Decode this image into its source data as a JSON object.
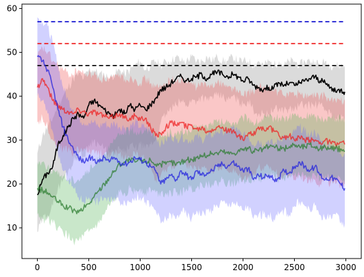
{
  "chart_data": {
    "type": "line",
    "title": "",
    "xlabel": "",
    "ylabel": "",
    "xlim": [
      -150,
      3150
    ],
    "ylim": [
      3,
      61
    ],
    "grid": false,
    "legend": "none",
    "xticks": [
      0,
      500,
      1000,
      1500,
      2000,
      2500,
      3000
    ],
    "yticks": [
      10,
      20,
      30,
      40,
      50,
      60
    ],
    "hlines": [
      {
        "y": 57,
        "color": "#0000cc",
        "style": "dashed"
      },
      {
        "y": 52,
        "color": "#ee1111",
        "style": "dashed"
      },
      {
        "y": 47,
        "color": "#000000",
        "style": "dashed"
      }
    ],
    "series": [
      {
        "color": "#000000",
        "fill_color": "#888888",
        "x": [
          0,
          50,
          100,
          150,
          200,
          250,
          300,
          350,
          400,
          450,
          500,
          550,
          600,
          650,
          700,
          750,
          800,
          850,
          900,
          950,
          1000,
          1050,
          1100,
          1150,
          1200,
          1250,
          1300,
          1350,
          1400,
          1450,
          1500,
          1550,
          1600,
          1650,
          1700,
          1750,
          1800,
          1850,
          1900,
          1950,
          2000,
          2050,
          2100,
          2150,
          2200,
          2250,
          2300,
          2350,
          2400,
          2450,
          2500,
          2550,
          2600,
          2650,
          2700,
          2750,
          2800,
          2850,
          2900,
          2950,
          2990
        ],
        "y": [
          17.5,
          21,
          22.5,
          24,
          29,
          31,
          33,
          35,
          36,
          35,
          38,
          39,
          38,
          37,
          36,
          35.5,
          37,
          36,
          38,
          37,
          38,
          37,
          38,
          39.5,
          41.5,
          42,
          43,
          44,
          44.5,
          43.5,
          44,
          44.5,
          45,
          44,
          45,
          45.5,
          45,
          44.5,
          45,
          44.5,
          43.5,
          44,
          42.5,
          42,
          41.5,
          42,
          42,
          43,
          42.5,
          43,
          42.5,
          43,
          43.5,
          44,
          44.5,
          43.5,
          43,
          42,
          41,
          41.5,
          41
        ],
        "upper": [
          27,
          31,
          33,
          35,
          38,
          40,
          42,
          44,
          45,
          44,
          46,
          46,
          45,
          45,
          44,
          45,
          46,
          45,
          46,
          47,
          48,
          46,
          47,
          48,
          47,
          48,
          48,
          49,
          48,
          48,
          49,
          48,
          48,
          49,
          48,
          49,
          48,
          48,
          49,
          48,
          48,
          48,
          47,
          48,
          47,
          48,
          47,
          48,
          47,
          48,
          48,
          47,
          48,
          48,
          48,
          47,
          48,
          47,
          47,
          47,
          47
        ],
        "lower": [
          9,
          12,
          13,
          15,
          19,
          21,
          23,
          25,
          27,
          26,
          29,
          30,
          29,
          28,
          27,
          27,
          28,
          27,
          29,
          28,
          29,
          28,
          29,
          30,
          34,
          36,
          37,
          38,
          39,
          38,
          39,
          39,
          40,
          39,
          40,
          40,
          40,
          39,
          40,
          39,
          38,
          39,
          37,
          36,
          36,
          36,
          37,
          37,
          37,
          37,
          37,
          38,
          38,
          38,
          38,
          38,
          37,
          36,
          35,
          35,
          35
        ]
      },
      {
        "color": "#ee2222",
        "fill_color": "#ee4444",
        "x": [
          0,
          50,
          100,
          150,
          200,
          250,
          300,
          350,
          400,
          450,
          500,
          550,
          600,
          650,
          700,
          750,
          800,
          850,
          900,
          950,
          1000,
          1050,
          1100,
          1150,
          1200,
          1250,
          1300,
          1350,
          1400,
          1450,
          1500,
          1550,
          1600,
          1650,
          1700,
          1750,
          1800,
          1850,
          1900,
          1950,
          2000,
          2050,
          2100,
          2150,
          2200,
          2250,
          2300,
          2350,
          2400,
          2450,
          2500,
          2550,
          2600,
          2650,
          2700,
          2750,
          2800,
          2850,
          2900,
          2950,
          2990
        ],
        "y": [
          42,
          44,
          42,
          39,
          38,
          37,
          36.5,
          36,
          37,
          36.5,
          36,
          36.5,
          36,
          35.5,
          35,
          35.5,
          36,
          35,
          35,
          35.5,
          34.5,
          35,
          33,
          31,
          31.5,
          33,
          34,
          33.5,
          34,
          33,
          33.5,
          32.5,
          33,
          32,
          32.5,
          33,
          33,
          32,
          32,
          31,
          30,
          31.5,
          31,
          33,
          32.5,
          33,
          32,
          31,
          30.5,
          31,
          30,
          30.5,
          30,
          30,
          30,
          29.5,
          30,
          29.5,
          29,
          29.5,
          29
        ],
        "upper": [
          49,
          51,
          50,
          48,
          47,
          46,
          45,
          45,
          46,
          45,
          45,
          45,
          44,
          44,
          44,
          44,
          45,
          44,
          44,
          44,
          43,
          44,
          43,
          42,
          42,
          43,
          44,
          43,
          44,
          43,
          43,
          42,
          43,
          42,
          43,
          43,
          43,
          42,
          42,
          41,
          40,
          41,
          41,
          42,
          42,
          42,
          41,
          41,
          40,
          41,
          40,
          41,
          40,
          40,
          40,
          40,
          40,
          39,
          39,
          39,
          39
        ],
        "lower": [
          34,
          35,
          33,
          30,
          29,
          28,
          28,
          27,
          28,
          28,
          27,
          28,
          27,
          27,
          26,
          27,
          27,
          26,
          26,
          27,
          26,
          26,
          24,
          21,
          22,
          23,
          24,
          24,
          25,
          24,
          24,
          23,
          24,
          23,
          23,
          24,
          24,
          23,
          23,
          22,
          21,
          22,
          22,
          24,
          23,
          24,
          23,
          22,
          22,
          22,
          21,
          22,
          21,
          21,
          21,
          20,
          21,
          20,
          20,
          20,
          20
        ]
      },
      {
        "color": "#2e7d32",
        "fill_color": "#4caf50",
        "x": [
          0,
          50,
          100,
          150,
          200,
          250,
          300,
          350,
          400,
          450,
          500,
          550,
          600,
          650,
          700,
          750,
          800,
          850,
          900,
          950,
          1000,
          1050,
          1100,
          1150,
          1200,
          1250,
          1300,
          1350,
          1400,
          1450,
          1500,
          1550,
          1600,
          1650,
          1700,
          1750,
          1800,
          1850,
          1900,
          1950,
          2000,
          2050,
          2100,
          2150,
          2200,
          2250,
          2300,
          2350,
          2400,
          2450,
          2500,
          2550,
          2600,
          2650,
          2700,
          2750,
          2800,
          2850,
          2900,
          2950,
          2990
        ],
        "y": [
          19,
          18.5,
          18,
          17,
          16,
          15,
          14.5,
          14,
          13.5,
          14.5,
          15.5,
          17,
          18.5,
          20,
          21.5,
          23,
          24.5,
          25,
          25.5,
          25,
          25.5,
          25,
          25.5,
          24.5,
          24.5,
          24.5,
          25,
          24.5,
          25,
          25.5,
          25.5,
          26,
          26.5,
          26.5,
          27,
          27,
          27.5,
          27,
          27,
          27.5,
          28,
          28,
          27.5,
          27.5,
          28,
          28.5,
          28.5,
          28,
          28,
          28.5,
          29,
          28.5,
          28.5,
          29,
          28.5,
          28,
          28.5,
          28,
          28,
          28,
          27.5
        ],
        "upper": [
          25,
          25,
          24,
          23,
          22,
          22,
          21,
          21,
          21,
          22,
          23,
          24,
          26,
          27,
          28,
          30,
          31,
          32,
          32,
          32,
          32,
          32,
          32,
          31,
          31,
          31,
          32,
          31,
          32,
          32,
          32,
          33,
          33,
          33,
          34,
          34,
          34,
          34,
          34,
          34,
          35,
          35,
          34,
          34,
          35,
          35,
          35,
          35,
          35,
          35,
          36,
          35,
          35,
          36,
          35,
          35,
          35,
          35,
          35,
          35,
          35
        ],
        "lower": [
          13,
          12,
          12,
          11,
          10,
          9,
          8,
          7,
          7,
          8,
          9,
          10,
          11,
          13,
          15,
          16,
          18,
          18,
          19,
          18,
          19,
          18,
          19,
          18,
          18,
          18,
          18,
          18,
          18,
          19,
          19,
          19,
          20,
          20,
          20,
          20,
          21,
          20,
          20,
          21,
          21,
          21,
          21,
          21,
          21,
          22,
          22,
          21,
          21,
          22,
          22,
          22,
          22,
          22,
          22,
          21,
          22,
          21,
          21,
          21,
          20
        ]
      },
      {
        "color": "#2222dd",
        "fill_color": "#6666ff",
        "x": [
          0,
          50,
          100,
          150,
          200,
          250,
          300,
          350,
          400,
          450,
          500,
          550,
          600,
          650,
          700,
          750,
          800,
          850,
          900,
          950,
          1000,
          1050,
          1100,
          1150,
          1200,
          1250,
          1300,
          1350,
          1400,
          1450,
          1500,
          1550,
          1600,
          1650,
          1700,
          1750,
          1800,
          1850,
          1900,
          1950,
          2000,
          2050,
          2100,
          2150,
          2200,
          2250,
          2300,
          2350,
          2400,
          2450,
          2500,
          2550,
          2600,
          2650,
          2700,
          2750,
          2800,
          2850,
          2900,
          2950,
          2990
        ],
        "y": [
          49,
          48,
          46,
          42,
          37,
          33,
          30,
          28,
          26,
          25,
          26,
          25.5,
          25,
          26,
          25,
          26,
          25,
          24.5,
          25,
          26,
          25.5,
          25,
          24,
          23,
          20,
          21,
          22,
          21,
          23,
          22,
          21,
          23,
          22,
          22.5,
          23,
          24,
          24.5,
          24,
          25,
          24,
          23,
          23.5,
          21,
          22,
          21.5,
          22,
          21,
          21.5,
          23,
          22.5,
          24,
          25,
          24,
          23,
          24,
          22,
          21,
          21.5,
          21,
          20,
          19
        ],
        "upper": [
          58,
          57,
          56,
          52,
          47,
          42,
          39,
          37,
          35,
          34,
          34,
          34,
          33,
          34,
          33,
          34,
          33,
          33,
          33,
          34,
          33,
          33,
          32,
          31,
          29,
          30,
          31,
          30,
          31,
          30,
          30,
          31,
          30,
          31,
          31,
          32,
          32,
          32,
          33,
          32,
          31,
          31,
          29,
          30,
          29,
          30,
          29,
          30,
          31,
          30,
          32,
          33,
          32,
          31,
          32,
          30,
          29,
          29,
          28,
          27,
          27
        ],
        "lower": [
          40,
          39,
          36,
          32,
          27,
          23,
          21,
          19,
          17,
          16,
          17,
          16,
          16,
          17,
          16,
          17,
          16,
          16,
          16,
          17,
          17,
          16,
          15,
          14,
          11,
          12,
          13,
          12,
          14,
          13,
          12,
          14,
          13,
          14,
          14,
          15,
          16,
          15,
          16,
          15,
          14,
          15,
          12,
          13,
          13,
          13,
          12,
          13,
          14,
          13,
          15,
          16,
          15,
          14,
          15,
          13,
          12,
          13,
          13,
          11,
          11
        ]
      }
    ]
  }
}
